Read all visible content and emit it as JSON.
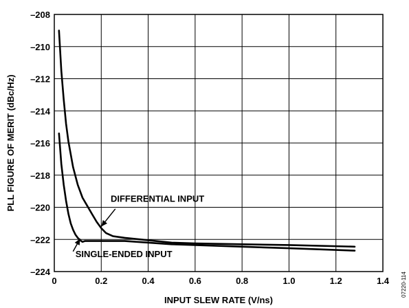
{
  "chart_data": {
    "type": "line",
    "title": "",
    "xlabel": "INPUT SLEW RATE (V/ns)",
    "ylabel": "PLL FIGURE OF MERIT (dBc/Hz)",
    "xlim": [
      0,
      1.4
    ],
    "ylim": [
      -224,
      -208
    ],
    "x_ticks": [
      0,
      0.2,
      0.4,
      0.6,
      0.8,
      1.0,
      1.2,
      1.4
    ],
    "x_tick_labels": [
      "0",
      "0.2",
      "0.4",
      "0.6",
      "0.8",
      "1.0",
      "1.2",
      "1.4"
    ],
    "y_ticks": [
      -208,
      -210,
      -212,
      -214,
      -216,
      -218,
      -220,
      -222,
      -224
    ],
    "y_tick_labels": [
      "–208",
      "–210",
      "–212",
      "–214",
      "–216",
      "–218",
      "–220",
      "–222",
      "–224"
    ],
    "grid": true,
    "series": [
      {
        "name": "DIFFERENTIAL INPUT",
        "color": "#000000",
        "x": [
          0.02,
          0.03,
          0.04,
          0.05,
          0.06,
          0.08,
          0.1,
          0.12,
          0.14,
          0.16,
          0.18,
          0.2,
          0.22,
          0.25,
          0.3,
          0.4,
          0.5,
          0.6,
          0.8,
          1.0,
          1.28
        ],
        "y": [
          -209.0,
          -211.5,
          -213.3,
          -214.8,
          -215.9,
          -217.5,
          -218.6,
          -219.4,
          -219.9,
          -220.4,
          -220.9,
          -221.3,
          -221.6,
          -221.8,
          -221.9,
          -222.05,
          -222.2,
          -222.25,
          -222.3,
          -222.35,
          -222.45
        ]
      },
      {
        "name": "SINGLE-ENDED INPUT",
        "color": "#000000",
        "x": [
          0.02,
          0.03,
          0.04,
          0.05,
          0.06,
          0.07,
          0.08,
          0.09,
          0.1,
          0.11,
          0.12,
          0.13,
          0.15,
          0.2,
          0.3,
          0.4,
          0.5,
          0.6,
          0.8,
          1.0,
          1.28
        ],
        "y": [
          -215.4,
          -217.3,
          -218.6,
          -219.6,
          -220.4,
          -221.0,
          -221.4,
          -221.7,
          -221.9,
          -222.05,
          -222.15,
          -222.1,
          -222.1,
          -222.1,
          -222.1,
          -222.2,
          -222.3,
          -222.35,
          -222.45,
          -222.55,
          -222.7
        ]
      }
    ],
    "annotations": [
      {
        "text": "DIFFERENTIAL INPUT",
        "series": 0
      },
      {
        "text": "SINGLE-ENDED INPUT",
        "series": 1
      }
    ],
    "figure_code": "07220-114"
  }
}
